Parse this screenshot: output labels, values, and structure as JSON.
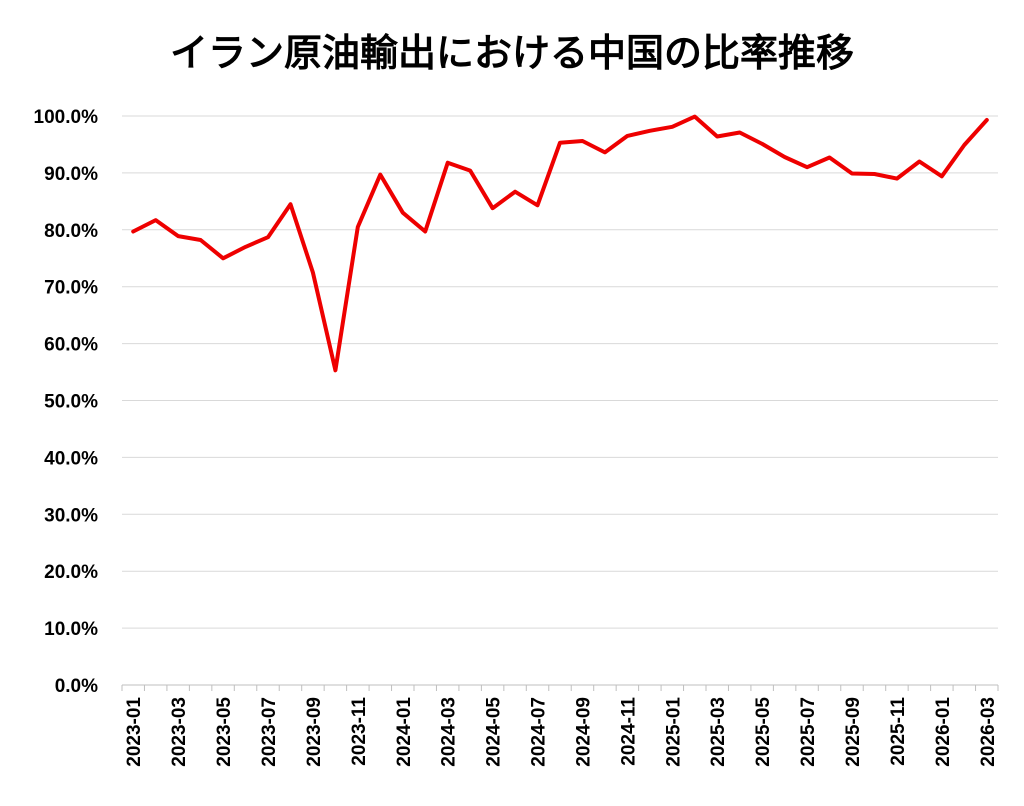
{
  "chart_data": {
    "type": "line",
    "title": "イラン原油輸出における中国の比率推移",
    "xlabel": "",
    "ylabel": "",
    "ylim": [
      0,
      100
    ],
    "y_tick_values": [
      0,
      10,
      20,
      30,
      40,
      50,
      60,
      70,
      80,
      90,
      100
    ],
    "y_tick_labels": [
      "0.0%",
      "10.0%",
      "20.0%",
      "30.0%",
      "40.0%",
      "50.0%",
      "60.0%",
      "70.0%",
      "80.0%",
      "90.0%",
      "100.0%"
    ],
    "x_tick_labels": [
      "2023-01",
      "2023-03",
      "2023-05",
      "2023-07",
      "2023-09",
      "2023-11",
      "2024-01",
      "2024-03",
      "2024-05",
      "2024-07",
      "2024-09",
      "2024-11",
      "2025-01",
      "2025-03",
      "2025-05",
      "2025-07",
      "2025-09",
      "2025-11",
      "2026-01",
      "2026-03"
    ],
    "grid": true,
    "legend": "none",
    "series_color": "#ee0000",
    "x": [
      "2023-01",
      "2023-02",
      "2023-03",
      "2023-04",
      "2023-05",
      "2023-06",
      "2023-07",
      "2023-08",
      "2023-09",
      "2023-10",
      "2023-11",
      "2023-12",
      "2024-01",
      "2024-02",
      "2024-03",
      "2024-04",
      "2024-05",
      "2024-06",
      "2024-07",
      "2024-08",
      "2024-09",
      "2024-10",
      "2024-11",
      "2024-12",
      "2025-01",
      "2025-02",
      "2025-03",
      "2025-04",
      "2025-05",
      "2025-06",
      "2025-07",
      "2025-08",
      "2025-09",
      "2025-10",
      "2025-11",
      "2025-12",
      "2026-01",
      "2026-02",
      "2026-03"
    ],
    "values": [
      79.7,
      81.7,
      78.9,
      78.2,
      75.0,
      77.0,
      78.7,
      84.5,
      72.5,
      55.3,
      80.5,
      89.7,
      83.0,
      79.7,
      91.8,
      90.4,
      83.8,
      86.7,
      84.3,
      95.3,
      95.6,
      93.6,
      96.5,
      97.4,
      98.1,
      99.9,
      96.4,
      97.1,
      95.1,
      92.8,
      91.0,
      92.7,
      89.9,
      89.8,
      89.0,
      92.0,
      89.4,
      94.9,
      99.3
    ]
  }
}
